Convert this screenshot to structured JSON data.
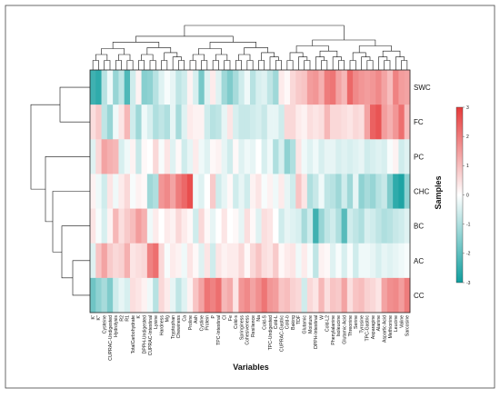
{
  "chart_data": {
    "type": "heatmap",
    "xlabel": "Variables",
    "ylabel": "Samples",
    "rows": [
      "SWC",
      "FC",
      "PC",
      "CHC",
      "BC",
      "AC",
      "CC"
    ],
    "columns": [
      "K'",
      "K''",
      "Cysteine",
      "CUPRAC-Undigested",
      "Hydrolysis",
      "R2",
      "R1",
      "TotalCarbohydrate",
      "K",
      "DPPH-Undigested",
      "CUPRAC-Intestinal",
      "Lysine",
      "Hardness",
      "Mg",
      "Tryptophan",
      "Chewiness",
      "Ca",
      "Proline",
      "Ash",
      "Cystine",
      "Protein",
      "P",
      "TPC-Intestinal",
      "Cl",
      "Fe",
      "Cold-s",
      "Springiness",
      "Cohesiveness",
      "Resilience",
      "Na",
      "Cold-S",
      "TPC-Undigested",
      "Cold-L",
      "CUPRAC-Gastric",
      "Cold-b",
      "Baking",
      "TDF",
      "Glutamic",
      "Moisture",
      "DPPH-Intestinal",
      "W",
      "Cold-L2",
      "Phenylalanine",
      "Isoleucine",
      "Glutamic Acid",
      "Threonine",
      "Serine",
      "Tyrosine",
      "TPC-Gastric",
      "Asparagine",
      "Alanine",
      "Aspartic Acid",
      "Methionine",
      "Leucine",
      "Valine",
      "Sarcosine"
    ],
    "values": [
      [
        -2.4,
        -2.6,
        -0.9,
        -0.2,
        -1.3,
        -0.8,
        -2.2,
        -0.6,
        0.2,
        -1.5,
        -1.4,
        -0.9,
        -0.4,
        -0.1,
        -0.3,
        -0.8,
        -0.6,
        0.2,
        -0.5,
        -1.7,
        -0.4,
        0.3,
        -0.4,
        -1.2,
        -1.6,
        -1.1,
        -0.6,
        -0.2,
        -0.9,
        -0.5,
        -0.4,
        -0.8,
        -1.2,
        0.3,
        0.1,
        0.6,
        0.8,
        0.9,
        1.5,
        1.6,
        1.2,
        2.0,
        2.1,
        1.4,
        1.1,
        2.3,
        1.8,
        1.6,
        1.5,
        1.6,
        1.8,
        1.4,
        1.0,
        1.9,
        1.5,
        1.4
      ],
      [
        0.5,
        0.8,
        -0.8,
        -1.3,
        -0.2,
        0.4,
        1.1,
        -0.6,
        -1.2,
        -0.2,
        -0.5,
        -1.0,
        -0.8,
        -1.0,
        -0.3,
        -1.1,
        -0.4,
        0.3,
        0.2,
        0.2,
        -0.6,
        -0.9,
        -0.8,
        -0.3,
        0.4,
        -0.5,
        -0.7,
        -0.7,
        -0.6,
        -0.5,
        -0.7,
        -0.3,
        -0.3,
        -0.6,
        0.6,
        0.6,
        0.3,
        0.2,
        0.5,
        0.4,
        0.5,
        1.1,
        0.6,
        0.6,
        0.5,
        0.4,
        0.6,
        0.5,
        1.4,
        2.4,
        2.6,
        1.5,
        1.2,
        1.6,
        2.2,
        1.0
      ],
      [
        -0.4,
        0.6,
        1.4,
        1.2,
        1.1,
        -0.5,
        -0.2,
        0.2,
        -0.7,
        0.1,
        0.0,
        0.6,
        -0.1,
        0.4,
        -0.4,
        0.1,
        -0.6,
        -0.3,
        0.3,
        -0.2,
        -0.4,
        0.1,
        0.2,
        -0.3,
        -0.6,
        0.1,
        -0.4,
        -0.2,
        -0.3,
        0.0,
        -0.5,
        -0.2,
        -1.0,
        -0.5,
        -1.4,
        -1.0,
        0.4,
        -0.2,
        -0.4,
        -0.2,
        -0.5,
        -0.3,
        -0.3,
        -0.5,
        -0.4,
        -0.5,
        -0.4,
        -0.3,
        -0.6,
        -0.5,
        -0.4,
        -0.5,
        -0.1,
        0.2,
        -0.6,
        -0.4
      ],
      [
        0.2,
        -0.2,
        -0.6,
        0.4,
        -0.2,
        0.3,
        0.6,
        -0.1,
        0.2,
        0.1,
        -1.2,
        -1.0,
        1.6,
        1.8,
        1.4,
        2.0,
        2.3,
        2.7,
        -0.2,
        -0.4,
        0.0,
        0.8,
        -0.6,
        -0.3,
        0.1,
        -0.6,
        -0.3,
        -0.6,
        0.2,
        0.4,
        -0.1,
        0.2,
        -0.2,
        0.3,
        -0.3,
        -0.6,
        0.9,
        0.4,
        -1.0,
        -0.7,
        -0.2,
        -0.8,
        -0.9,
        -1.2,
        -0.6,
        -1.2,
        -0.3,
        -1.4,
        -1.1,
        -1.3,
        -0.9,
        -0.7,
        -1.6,
        -2.6,
        -2.8,
        -1.4
      ],
      [
        0.4,
        -0.1,
        -0.5,
        0.2,
        1.1,
        0.5,
        0.8,
        1.0,
        1.5,
        1.2,
        -0.2,
        0.3,
        0.0,
        0.3,
        0.2,
        0.6,
        0.3,
        0.1,
        -0.6,
        0.6,
        0.1,
        -0.3,
        0.0,
        0.4,
        0.0,
        0.1,
        -0.3,
        0.5,
        0.1,
        -0.4,
        0.5,
        0.4,
        0.0,
        -0.6,
        -0.3,
        -0.4,
        -0.5,
        -1.1,
        -0.6,
        -2.4,
        -1.3,
        -0.8,
        -0.6,
        -1.0,
        -2.1,
        -0.6,
        -0.8,
        -1.0,
        -0.5,
        -0.6,
        -0.8,
        -1.0,
        -0.9,
        -0.7,
        -0.6,
        -0.4
      ],
      [
        -0.4,
        0.9,
        1.4,
        0.8,
        0.6,
        0.7,
        1.2,
        0.4,
        0.5,
        0.6,
        1.9,
        2.2,
        0.6,
        -0.1,
        0.3,
        0.2,
        -0.2,
        0.4,
        0.1,
        -0.4,
        0.4,
        -0.6,
        0.4,
        0.2,
        0.3,
        0.3,
        0.6,
        0.1,
        0.6,
        0.9,
        0.5,
        0.4,
        0.8,
        0.1,
        0.3,
        0.4,
        -0.2,
        0.3,
        -0.1,
        -0.8,
        0.2,
        0.1,
        -0.4,
        -0.1,
        -0.5,
        -0.1,
        -0.6,
        -0.2,
        -0.2,
        -0.3,
        -0.5,
        -0.3,
        -0.4,
        -0.3,
        -0.2,
        -0.1
      ],
      [
        -1.8,
        -1.4,
        -1.1,
        -1.6,
        -0.6,
        -0.3,
        -0.5,
        0.5,
        0.4,
        0.2,
        -0.2,
        -0.9,
        0.6,
        0.3,
        -0.3,
        -0.8,
        -0.4,
        0.2,
        0.9,
        1.4,
        2.1,
        1.9,
        2.2,
        1.1,
        1.3,
        0.4,
        1.6,
        1.8,
        1.4,
        1.7,
        2.1,
        1.6,
        1.5,
        0.9,
        1.0,
        0.7,
        0.6,
        -0.6,
        0.6,
        0.4,
        1.1,
        0.5,
        0.9,
        0.8,
        1.4,
        0.5,
        0.9,
        1.0,
        0.7,
        0.6,
        0.4,
        1.4,
        1.7,
        1.8,
        1.5,
        2.0
      ]
    ],
    "colorbar": {
      "min": -3,
      "max": 3,
      "ticks": [
        3,
        2,
        1,
        0,
        -1,
        -2,
        -3
      ]
    },
    "colors": {
      "low": "#0f9e9e",
      "mid": "#ffffff",
      "high": "#e63a3a"
    }
  }
}
